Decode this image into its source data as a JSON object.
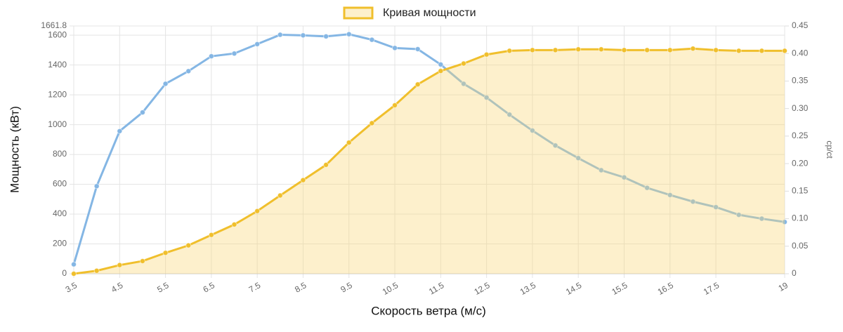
{
  "chart_data": {
    "type": "line",
    "legend_position": "top",
    "xlabel": "Скорость ветра (м/с)",
    "ylabel": "Мощность (кВт)",
    "y2label": "cp/ct",
    "x": [
      3.5,
      4,
      4.5,
      5,
      5.5,
      6,
      6.5,
      7,
      7.5,
      8,
      8.5,
      9,
      9.5,
      10,
      10.5,
      11,
      11.5,
      12,
      12.5,
      13,
      13.5,
      14,
      14.5,
      15,
      15.5,
      16,
      16.5,
      17,
      17.5,
      18,
      18.5,
      19
    ],
    "series": [
      {
        "color": "#84b6e4",
        "axis": "y2",
        "fill": false,
        "values": [
          0.017,
          0.159,
          0.259,
          0.293,
          0.345,
          0.368,
          0.395,
          0.4,
          0.417,
          0.434,
          0.433,
          0.431,
          0.435,
          0.425,
          0.41,
          0.408,
          0.38,
          0.345,
          0.32,
          0.289,
          0.26,
          0.233,
          0.21,
          0.188,
          0.175,
          0.156,
          0.143,
          0.131,
          0.121,
          0.107,
          0.1,
          0.094
        ]
      },
      {
        "name": "Кривая мощности",
        "color": "#f0bf2c",
        "fill": true,
        "values": [
          0,
          20,
          58,
          85,
          140,
          190,
          260,
          330,
          420,
          525,
          628,
          730,
          880,
          1010,
          1130,
          1270,
          1360,
          1410,
          1470,
          1495,
          1500,
          1500,
          1505,
          1505,
          1500,
          1500,
          1500,
          1510,
          1500,
          1495,
          1495,
          1495
        ]
      }
    ],
    "xlim": [
      3.5,
      19
    ],
    "xticks": [
      3.5,
      4.5,
      5.5,
      6.5,
      7.5,
      8.5,
      9.5,
      10.5,
      11.5,
      12.5,
      13.5,
      14.5,
      15.5,
      16.5,
      17.5,
      19
    ],
    "ylim": [
      0,
      1661.8
    ],
    "yticks": [
      0,
      200,
      400,
      600,
      800,
      1000,
      1200,
      1400,
      1600,
      1661.8
    ],
    "y2lim": [
      0,
      0.45
    ],
    "y2ticks": [
      0,
      0.05,
      {
        "value": 0.1,
        "label": "0.10"
      },
      0.15,
      {
        "value": 0.2,
        "label": "0.20"
      },
      0.25,
      {
        "value": 0.3,
        "label": "0.30"
      },
      0.35,
      {
        "value": 0.4,
        "label": "0.40"
      },
      0.45
    ],
    "grid": true
  }
}
